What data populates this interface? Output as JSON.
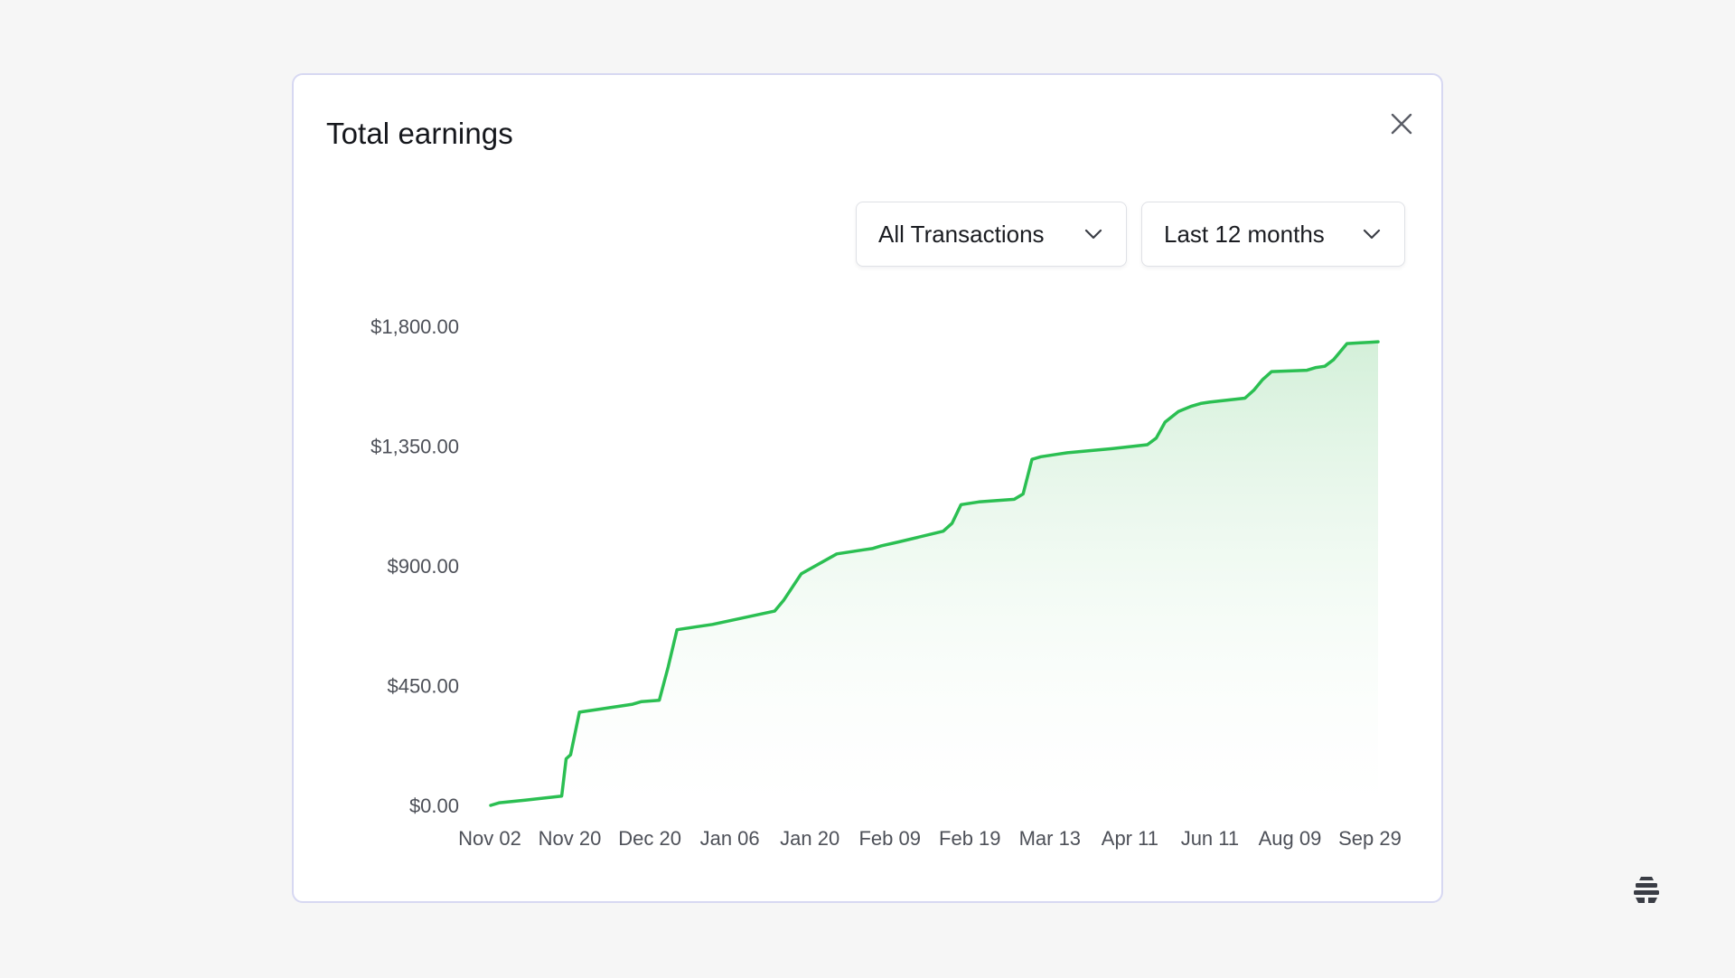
{
  "modal": {
    "title": "Total earnings"
  },
  "filters": {
    "transactions": "All Transactions",
    "period": "Last 12 months"
  },
  "icons": {
    "close": "close-icon",
    "chevron": "chevron-down-icon",
    "brand": "brand-logo-icon"
  },
  "colors": {
    "line": "#2bbf52",
    "fill_top": "#cfeed5",
    "accent_border": "#d7d8f2"
  },
  "chart_data": {
    "type": "area",
    "title": "",
    "xlabel": "",
    "ylabel": "",
    "ylim": [
      0,
      1800
    ],
    "y_ticks": [
      "$0.00",
      "$450.00",
      "$900.00",
      "$1,350.00",
      "$1,800.00"
    ],
    "y_tick_values": [
      0,
      450,
      900,
      1350,
      1800
    ],
    "x_ticks": [
      "Nov 02",
      "Nov 20",
      "Dec 20",
      "Jan 06",
      "Jan 20",
      "Feb 09",
      "Feb 19",
      "Mar 13",
      "Apr 11",
      "Jun 11",
      "Aug 09",
      "Sep 29"
    ],
    "grid": false,
    "legend": "none",
    "series": [
      {
        "x": [
          0,
          2,
          8,
          16,
          17,
          18,
          20,
          24,
          32,
          34,
          38,
          40,
          42,
          44,
          46,
          50,
          64,
          66,
          70,
          78,
          80,
          82,
          84,
          86,
          88,
          92,
          102,
          104,
          106,
          110,
          118,
          120,
          122,
          124,
          126,
          128,
          130,
          140,
          148,
          150,
          152,
          155,
          158,
          160,
          162,
          170,
          172,
          174,
          176,
          184,
          186,
          188,
          190,
          193,
          196,
          198,
          200
        ],
        "y": [
          0,
          10,
          20,
          35,
          175,
          190,
          350,
          360,
          380,
          390,
          395,
          520,
          660,
          665,
          670,
          680,
          730,
          770,
          870,
          945,
          950,
          955,
          960,
          965,
          975,
          990,
          1030,
          1060,
          1130,
          1140,
          1150,
          1170,
          1300,
          1310,
          1315,
          1320,
          1325,
          1340,
          1355,
          1380,
          1440,
          1480,
          1500,
          1510,
          1515,
          1530,
          1560,
          1600,
          1630,
          1635,
          1645,
          1650,
          1675,
          1735,
          1738,
          1740,
          1742
        ]
      }
    ]
  }
}
